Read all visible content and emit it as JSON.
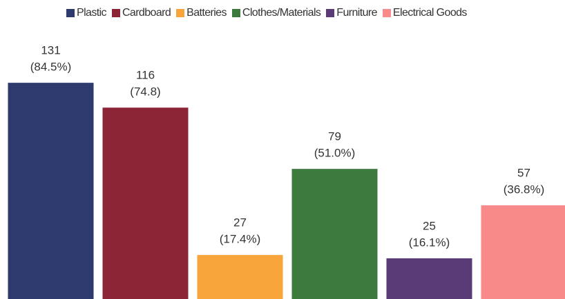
{
  "chart_data": {
    "type": "bar",
    "series": [
      {
        "name": "Plastic",
        "color": "#2e3a6e",
        "values": [
          131
        ]
      },
      {
        "name": "Cardboard",
        "color": "#8b2535",
        "values": [
          116
        ]
      },
      {
        "name": "Batteries",
        "color": "#f7a43a",
        "values": [
          27
        ]
      },
      {
        "name": "Clothes/Materials",
        "color": "#3c7a3e",
        "values": [
          79
        ]
      },
      {
        "name": "Furniture",
        "color": "#5b3a78",
        "values": [
          25
        ]
      },
      {
        "name": "Electrical Goods",
        "color": "#f88a8a",
        "values": [
          57
        ]
      }
    ],
    "percent_labels": [
      "(84.5%)",
      "(74.8)",
      "(17.4%)",
      "(51.0%)",
      "(16.1%)",
      "(36.8%)"
    ],
    "ylim": [
      0,
      181
    ]
  }
}
